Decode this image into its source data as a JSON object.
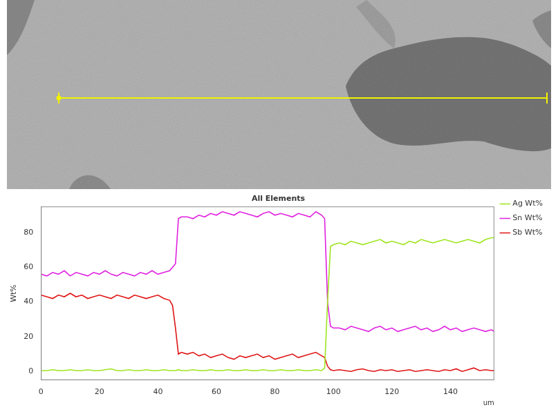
{
  "chart_data": {
    "type": "line",
    "title": "All Elements",
    "y_label": "Wt%",
    "x_label": "um",
    "x": [
      0,
      2,
      4,
      6,
      8,
      10,
      12,
      14,
      16,
      18,
      20,
      22,
      24,
      26,
      28,
      30,
      32,
      34,
      36,
      38,
      40,
      42,
      44,
      45,
      46,
      47,
      48,
      50,
      52,
      54,
      56,
      58,
      60,
      62,
      64,
      66,
      68,
      70,
      72,
      74,
      76,
      78,
      80,
      82,
      84,
      86,
      88,
      90,
      92,
      94,
      96,
      97,
      98,
      99,
      100,
      102,
      104,
      106,
      108,
      110,
      112,
      114,
      116,
      118,
      120,
      122,
      124,
      126,
      128,
      130,
      132,
      134,
      136,
      138,
      140,
      142,
      144,
      146,
      148,
      150,
      152,
      154,
      155
    ],
    "series": [
      {
        "name": "Ag Wt%",
        "color": "#9ee51e",
        "values": [
          0.5,
          0.5,
          1,
          0.5,
          0.5,
          1,
          0.5,
          0.5,
          1,
          0.5,
          0.5,
          1,
          1.5,
          0.5,
          0.5,
          1,
          0.5,
          0.5,
          1,
          0.5,
          0.5,
          1,
          0.5,
          0.5,
          0.5,
          1,
          0.5,
          0.5,
          1,
          0.5,
          0.5,
          1,
          0.5,
          0.5,
          1,
          0.5,
          0.5,
          1,
          0.5,
          0.5,
          1,
          0.5,
          0.5,
          1,
          0.5,
          0.5,
          1,
          0.5,
          0.5,
          1,
          0.5,
          2,
          40,
          72,
          73,
          74,
          73,
          75,
          74,
          73,
          74,
          75,
          76,
          74,
          75,
          74,
          73,
          75,
          74,
          76,
          75,
          74,
          75,
          76,
          75,
          74,
          75,
          76,
          75,
          74,
          76,
          77,
          77
        ]
      },
      {
        "name": "Sn Wt%",
        "color": "#e020e0",
        "values": [
          56,
          55,
          57,
          56,
          58,
          55,
          57,
          56,
          55,
          57,
          56,
          58,
          56,
          55,
          57,
          56,
          55,
          57,
          56,
          58,
          56,
          57,
          58,
          60,
          62,
          88,
          89,
          89,
          88,
          90,
          89,
          91,
          90,
          92,
          91,
          90,
          92,
          91,
          90,
          89,
          91,
          92,
          90,
          91,
          90,
          89,
          91,
          90,
          89,
          92,
          90,
          88,
          40,
          26,
          25,
          25,
          24,
          26,
          25,
          24,
          23,
          25,
          26,
          24,
          25,
          23,
          24,
          25,
          26,
          24,
          25,
          23,
          24,
          26,
          24,
          25,
          23,
          24,
          25,
          24,
          23,
          24,
          23
        ]
      },
      {
        "name": "Sb Wt%",
        "color": "#e01414",
        "values": [
          44,
          43,
          42,
          44,
          43,
          45,
          43,
          44,
          42,
          43,
          44,
          43,
          42,
          44,
          43,
          42,
          44,
          43,
          42,
          43,
          44,
          42,
          41,
          38,
          25,
          10,
          11,
          10,
          11,
          9,
          10,
          8,
          9,
          10,
          8,
          7,
          9,
          8,
          9,
          10,
          8,
          9,
          7,
          8,
          9,
          10,
          8,
          9,
          10,
          11,
          9,
          8,
          3,
          1,
          0.5,
          1,
          0.5,
          0,
          1,
          1.5,
          0.5,
          0,
          1,
          0.5,
          1,
          0,
          0.5,
          1,
          0,
          0.5,
          1,
          0.5,
          0,
          1,
          0.5,
          1.5,
          0,
          1,
          2,
          0.5,
          1,
          0.5,
          0.5
        ]
      }
    ],
    "xlim": [
      0,
      155
    ],
    "xticks": [
      0,
      20,
      40,
      60,
      80,
      100,
      120,
      140
    ],
    "ylim": [
      -5,
      95
    ],
    "yticks": [
      0,
      20,
      40,
      60,
      80
    ],
    "grid": false,
    "legend": "right"
  }
}
